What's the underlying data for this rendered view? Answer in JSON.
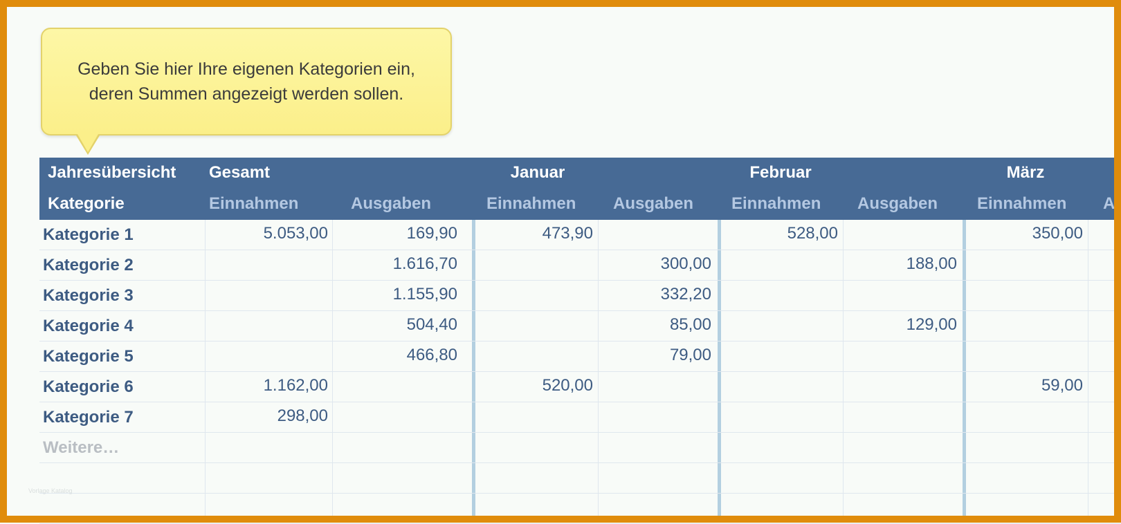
{
  "tooltip": {
    "line1": "Geben Sie hier Ihre eigenen Kategorien ein,",
    "line2": "deren Summen angezeigt werden sollen."
  },
  "header": {
    "row1": {
      "overview": "Jahresübersicht",
      "total": "Gesamt",
      "jan": "Januar",
      "feb": "Februar",
      "mar": "März"
    },
    "row2": {
      "category": "Kategorie",
      "income": "Einnahmen",
      "expenses": "Ausgaben",
      "cut_label": "A"
    }
  },
  "rows": [
    {
      "label": "Kategorie 1",
      "total_in": "5.053,00",
      "total_out": "169,90",
      "jan_in": "473,90",
      "jan_out": "",
      "feb_in": "528,00",
      "feb_out": "",
      "mar_in": "350,00"
    },
    {
      "label": "Kategorie 2",
      "total_in": "",
      "total_out": "1.616,70",
      "jan_in": "",
      "jan_out": "300,00",
      "feb_in": "",
      "feb_out": "188,00",
      "mar_in": ""
    },
    {
      "label": "Kategorie 3",
      "total_in": "",
      "total_out": "1.155,90",
      "jan_in": "",
      "jan_out": "332,20",
      "feb_in": "",
      "feb_out": "",
      "mar_in": ""
    },
    {
      "label": "Kategorie 4",
      "total_in": "",
      "total_out": "504,40",
      "jan_in": "",
      "jan_out": "85,00",
      "feb_in": "",
      "feb_out": "129,00",
      "mar_in": ""
    },
    {
      "label": "Kategorie 5",
      "total_in": "",
      "total_out": "466,80",
      "jan_in": "",
      "jan_out": "79,00",
      "feb_in": "",
      "feb_out": "",
      "mar_in": ""
    },
    {
      "label": "Kategorie 6",
      "total_in": "1.162,00",
      "total_out": "",
      "jan_in": "520,00",
      "jan_out": "",
      "feb_in": "",
      "feb_out": "",
      "mar_in": "59,00"
    },
    {
      "label": "Kategorie 7",
      "total_in": "298,00",
      "total_out": "",
      "jan_in": "",
      "jan_out": "",
      "feb_in": "",
      "feb_out": "",
      "mar_in": ""
    },
    {
      "label": "Weitere…",
      "total_in": "",
      "total_out": "",
      "jan_in": "",
      "jan_out": "",
      "feb_in": "",
      "feb_out": "",
      "mar_in": ""
    }
  ],
  "watermark": "Vorlage Katalog",
  "colors": {
    "frame": "#e08c0c",
    "header_bg": "#476a95",
    "header_sub_text": "#b4c8e2",
    "cell_text": "#3d5b82",
    "tooltip_bg": "#fbef8a"
  }
}
